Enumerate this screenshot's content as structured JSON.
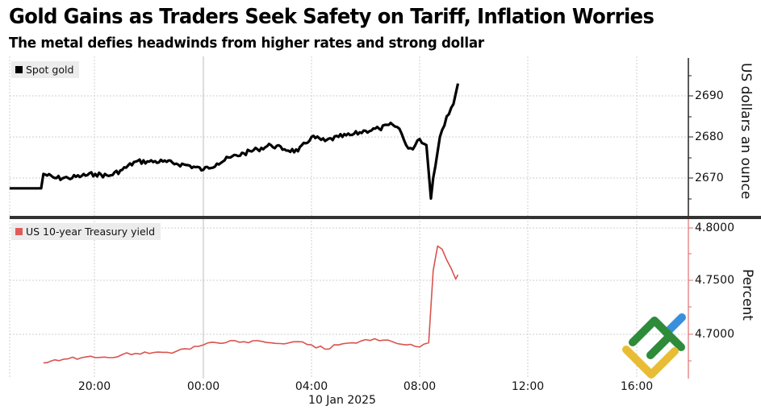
{
  "header": {
    "title": "Gold Gains as Traders Seek Safety on Tariff, Inflation Worries",
    "subtitle": "The metal defies headwinds from higher rates and strong dollar"
  },
  "colors": {
    "gold_line": "#000000",
    "yield_line": "#d9534f",
    "yield_axis": "#e07070",
    "grid": "#cfcfcf",
    "divider": "#333333",
    "legend_bg": "#ececec",
    "logo_green": "#2e8b3a",
    "logo_yellow": "#e8bd35",
    "logo_blue": "#3a8fdc"
  },
  "x_axis": {
    "ticks": [
      "20:00",
      "00:00",
      "04:00",
      "08:00",
      "12:00",
      "16:00"
    ],
    "date_label": "10 Jan 2025"
  },
  "top_panel": {
    "legend": "Spot gold",
    "ylabel": "US dollars an ounce",
    "yticks": [
      "2690",
      "2680",
      "2670"
    ]
  },
  "bottom_panel": {
    "legend": "US 10-year Treasury yield",
    "ylabel": "Percent",
    "yticks": [
      "4.8000",
      "4.7500",
      "4.7000"
    ]
  },
  "chart_data": [
    {
      "type": "line",
      "title": "Spot gold",
      "xlabel": "10 Jan 2025",
      "ylabel": "US dollars an ounce",
      "ylim": [
        2660,
        2696
      ],
      "x_ticks": [
        "20:00",
        "00:00",
        "04:00",
        "08:00",
        "12:00",
        "16:00"
      ],
      "grid": true,
      "legend_position": "top-left",
      "series": [
        {
          "name": "Spot gold",
          "x": [
            "16:50",
            "18:00",
            "18:05",
            "18:30",
            "19:00",
            "19:30",
            "20:00",
            "20:30",
            "21:00",
            "21:30",
            "22:00",
            "22:30",
            "23:00",
            "23:30",
            "00:00",
            "00:30",
            "01:00",
            "01:30",
            "02:00",
            "02:30",
            "03:00",
            "03:30",
            "04:00",
            "04:30",
            "05:00",
            "05:30",
            "06:00",
            "06:30",
            "07:00",
            "07:15",
            "07:30",
            "07:45",
            "08:00",
            "08:15",
            "08:25",
            "08:30",
            "08:45",
            "09:00",
            "09:15",
            "09:25"
          ],
          "values": [
            2667.5,
            2667.5,
            2671,
            2670,
            2670,
            2670.5,
            2671,
            2670.5,
            2672,
            2674,
            2674,
            2674,
            2673.5,
            2673,
            2672,
            2673.5,
            2675,
            2676,
            2677,
            2678,
            2677,
            2676.5,
            2680,
            2679,
            2680,
            2680.5,
            2681.5,
            2682,
            2683,
            2682,
            2678,
            2677,
            2679.5,
            2678,
            2665,
            2670,
            2680,
            2685,
            2688,
            2693
          ]
        }
      ]
    },
    {
      "type": "line",
      "title": "US 10-year Treasury yield",
      "xlabel": "10 Jan 2025",
      "ylabel": "Percent",
      "ylim": [
        4.66,
        4.81
      ],
      "x_ticks": [
        "20:00",
        "00:00",
        "04:00",
        "08:00",
        "12:00",
        "16:00"
      ],
      "grid": true,
      "legend_position": "top-left",
      "series": [
        {
          "name": "US 10-year Treasury yield",
          "x": [
            "18:05",
            "18:30",
            "19:00",
            "19:30",
            "20:00",
            "20:30",
            "21:00",
            "21:30",
            "22:00",
            "22:30",
            "23:00",
            "23:30",
            "00:00",
            "00:30",
            "01:00",
            "01:30",
            "02:00",
            "02:30",
            "03:00",
            "03:30",
            "04:00",
            "04:30",
            "05:00",
            "05:30",
            "06:00",
            "06:30",
            "07:00",
            "07:30",
            "08:00",
            "08:20",
            "08:30",
            "08:40",
            "08:50",
            "09:00",
            "09:10",
            "09:20",
            "09:25"
          ],
          "values": [
            4.673,
            4.676,
            4.677,
            4.678,
            4.678,
            4.678,
            4.681,
            4.682,
            4.682,
            4.683,
            4.684,
            4.686,
            4.69,
            4.692,
            4.694,
            4.693,
            4.694,
            4.692,
            4.691,
            4.693,
            4.69,
            4.686,
            4.69,
            4.692,
            4.695,
            4.694,
            4.693,
            4.69,
            4.688,
            4.692,
            4.76,
            4.783,
            4.78,
            4.77,
            4.762,
            4.752,
            4.756
          ]
        }
      ]
    }
  ]
}
